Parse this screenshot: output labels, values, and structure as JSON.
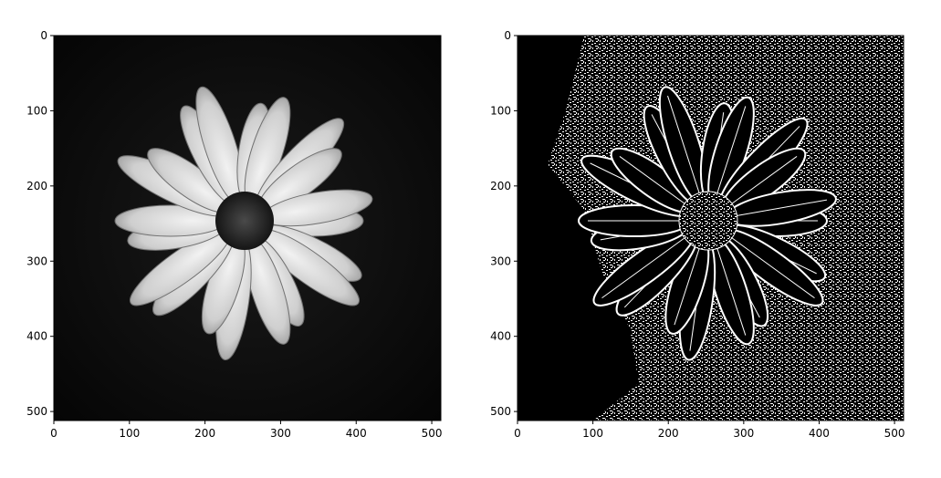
{
  "figure": {
    "background": "#ffffff",
    "panels": [
      {
        "id": "left",
        "description_visible": "grayscale photograph of a white daisy-like flower on a dark background",
        "x_ticks": [
          "0",
          "100",
          "200",
          "300",
          "400",
          "500"
        ],
        "y_ticks": [
          "0",
          "100",
          "200",
          "300",
          "400",
          "500"
        ],
        "xlim": [
          0,
          512
        ],
        "ylim": [
          512,
          0
        ]
      },
      {
        "id": "right",
        "description_visible": "black and white edge-filtered version of the same flower",
        "x_ticks": [
          "0",
          "100",
          "200",
          "300",
          "400",
          "500"
        ],
        "y_ticks": [
          "0",
          "100",
          "200",
          "300",
          "400",
          "500"
        ],
        "xlim": [
          0,
          512
        ],
        "ylim": [
          512,
          0
        ]
      }
    ]
  }
}
